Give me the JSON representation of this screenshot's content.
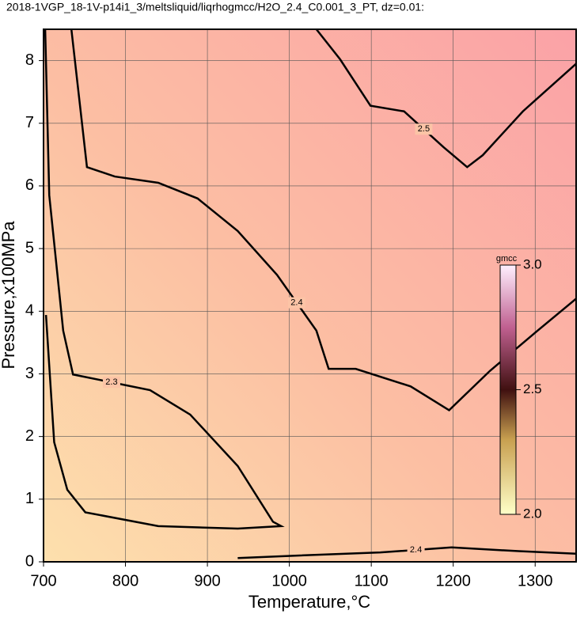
{
  "chart_data": {
    "type": "contour",
    "title": "2018-1VGP_18-1V-p14i1_3/meltsliquid/liqrhogmcc/H2O_2.4_C0.001_3_PT, dz=0.01:",
    "x_label": "Temperature,°C",
    "y_label": "Pressure,x100MPa",
    "xlim": [
      700,
      1350
    ],
    "xticks": [
      700,
      800,
      900,
      1000,
      1100,
      1200,
      1300
    ],
    "ylim": [
      0,
      8.5
    ],
    "yticks": [
      0,
      1,
      2,
      3,
      4,
      5,
      6,
      7,
      8
    ],
    "grid": true,
    "contours": [
      {
        "level": 2.3,
        "color": "#000000",
        "x": [
          702,
          707,
          724,
          736,
          830,
          879,
          937,
          980,
          990,
          937,
          840,
          751,
          729,
          713,
          703
        ],
        "y": [
          8.5,
          5.85,
          3.69,
          2.99,
          2.74,
          2.35,
          1.53,
          0.64,
          0.57,
          0.53,
          0.57,
          0.79,
          1.15,
          1.91,
          3.94
        ]
      },
      {
        "level": 2.4,
        "color": "#000000",
        "x": [
          734,
          753,
          787,
          840,
          888,
          937,
          985,
          1033,
          1048,
          1081,
          1148,
          1195,
          1245,
          1303,
          1350
        ],
        "y": [
          8.5,
          6.3,
          6.15,
          6.05,
          5.8,
          5.28,
          4.58,
          3.69,
          3.08,
          3.08,
          2.8,
          2.42,
          3.05,
          3.69,
          4.2
        ]
      },
      {
        "level": 2.4,
        "color": "#000000",
        "x": [
          937,
          1010,
          1111,
          1198,
          1280,
          1350
        ],
        "y": [
          0.06,
          0.1,
          0.15,
          0.23,
          0.17,
          0.13
        ]
      },
      {
        "level": 2.5,
        "color": "#000000",
        "x": [
          1033,
          1062,
          1099,
          1140,
          1188,
          1217,
          1236,
          1285,
          1350
        ],
        "y": [
          8.5,
          8.02,
          7.28,
          7.19,
          6.62,
          6.3,
          6.49,
          7.19,
          7.95
        ]
      }
    ],
    "colorbar": {
      "label": "gmcc",
      "lim": [
        2.0,
        3.0
      ],
      "ticks": [
        {
          "value": 2,
          "label": "2.0"
        },
        {
          "value": 2.5,
          "label": "2.5"
        },
        {
          "value": 3,
          "label": "3.0"
        }
      ]
    }
  }
}
